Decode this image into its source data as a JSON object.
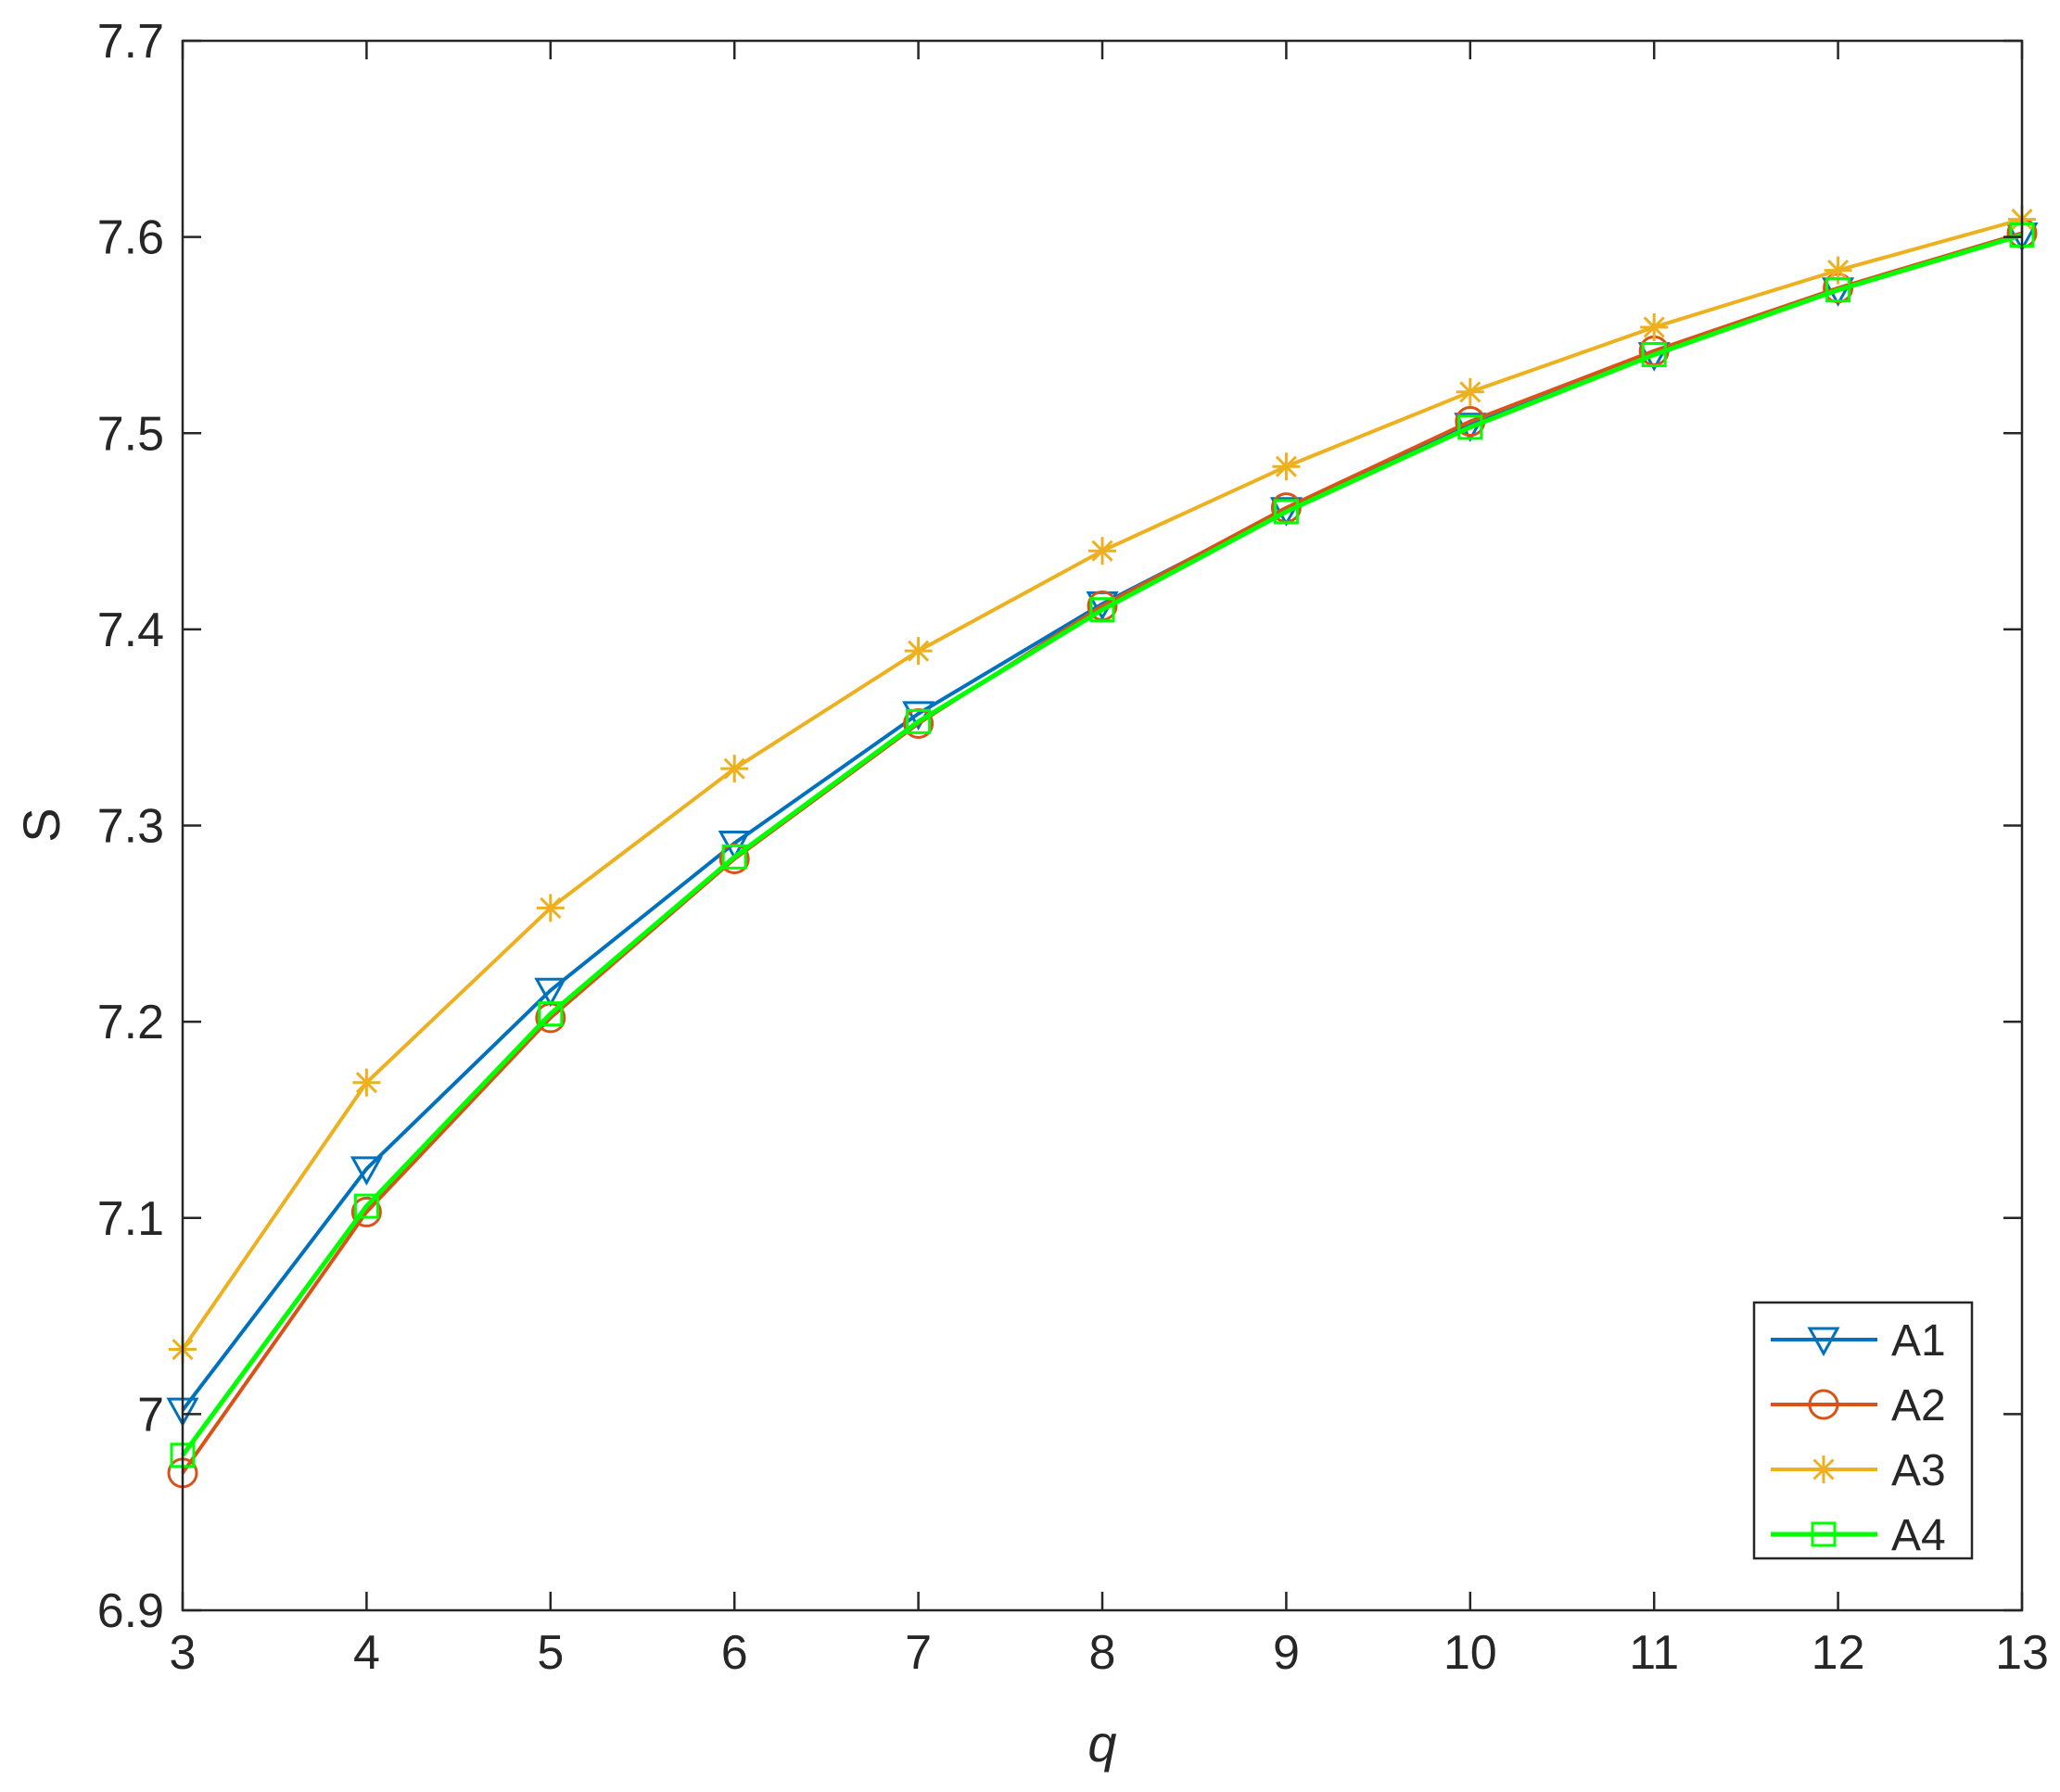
{
  "chart_data": {
    "type": "line",
    "xlabel": "q",
    "ylabel": "S",
    "xlim": [
      3,
      13
    ],
    "ylim": [
      6.9,
      7.7
    ],
    "xticks": [
      "3",
      "4",
      "5",
      "6",
      "7",
      "8",
      "9",
      "10",
      "11",
      "12",
      "13"
    ],
    "yticks": [
      "6.9",
      "7",
      "7.1",
      "7.2",
      "7.3",
      "7.4",
      "7.5",
      "7.6",
      "7.7"
    ],
    "grid": false,
    "legend_position": "bottom-right",
    "x": [
      3,
      4,
      5,
      6,
      7,
      8,
      9,
      10,
      11,
      12,
      13
    ],
    "series": [
      {
        "name": "A1",
        "color": "#0072BD",
        "marker": "triangle-down",
        "values": [
          7.002,
          7.125,
          7.216,
          7.291,
          7.357,
          7.413,
          7.461,
          7.504,
          7.54,
          7.573,
          7.601
        ]
      },
      {
        "name": "A2",
        "color": "#D95319",
        "marker": "circle",
        "values": [
          6.97,
          7.103,
          7.202,
          7.283,
          7.352,
          7.412,
          7.462,
          7.506,
          7.542,
          7.574,
          7.602
        ]
      },
      {
        "name": "A3",
        "color": "#EDB120",
        "marker": "asterisk",
        "values": [
          7.033,
          7.169,
          7.258,
          7.329,
          7.389,
          7.44,
          7.483,
          7.521,
          7.554,
          7.583,
          7.609
        ]
      },
      {
        "name": "A4",
        "color": "#00FF00",
        "marker": "square",
        "values": [
          6.979,
          7.106,
          7.204,
          7.284,
          7.353,
          7.41,
          7.46,
          7.503,
          7.54,
          7.573,
          7.601
        ]
      }
    ]
  }
}
